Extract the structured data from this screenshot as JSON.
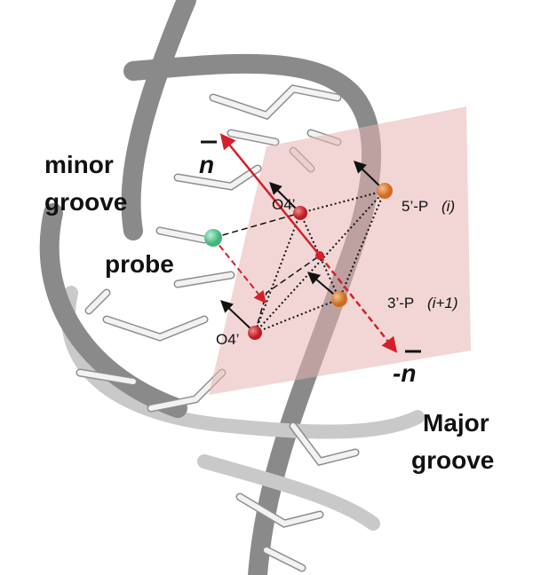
{
  "labels": {
    "minor_groove": [
      "minor",
      "groove"
    ],
    "probe": "probe",
    "o4_upper": "O4’",
    "o4_lower": "O4’",
    "p5": {
      "name": "5’-P",
      "index": "(i)"
    },
    "p3": {
      "name": "3’-P",
      "index": "(i+1)"
    },
    "normal": "n",
    "neg_normal": "-n",
    "major_groove": [
      "Major",
      "groove"
    ]
  }
}
